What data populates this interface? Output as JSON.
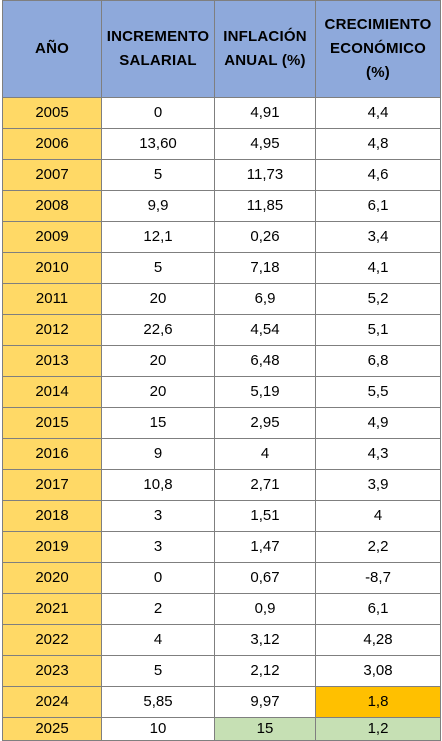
{
  "table": {
    "headers": [
      "AÑO",
      "INCREMENTO\nSALARIAL",
      "INFLACIÓN\nANUAL (%)",
      "CRECIMIENTO\nECONÓMICO\n(%)"
    ],
    "rows": [
      [
        "2005",
        "0",
        "4,91",
        "4,4"
      ],
      [
        "2006",
        "13,60",
        "4,95",
        "4,8"
      ],
      [
        "2007",
        "5",
        "11,73",
        "4,6"
      ],
      [
        "2008",
        "9,9",
        "11,85",
        "6,1"
      ],
      [
        "2009",
        "12,1",
        "0,26",
        "3,4"
      ],
      [
        "2010",
        "5",
        "7,18",
        "4,1"
      ],
      [
        "2011",
        "20",
        "6,9",
        "5,2"
      ],
      [
        "2012",
        "22,6",
        "4,54",
        "5,1"
      ],
      [
        "2013",
        "20",
        "6,48",
        "6,8"
      ],
      [
        "2014",
        "20",
        "5,19",
        "5,5"
      ],
      [
        "2015",
        "15",
        "2,95",
        "4,9"
      ],
      [
        "2016",
        "9",
        "4",
        "4,3"
      ],
      [
        "2017",
        "10,8",
        "2,71",
        "3,9"
      ],
      [
        "2018",
        "3",
        "1,51",
        "4"
      ],
      [
        "2019",
        "3",
        "1,47",
        "2,2"
      ],
      [
        "2020",
        "0",
        "0,67",
        "-8,7"
      ],
      [
        "2021",
        "2",
        "0,9",
        "6,1"
      ],
      [
        "2022",
        "4",
        "3,12",
        "4,28"
      ],
      [
        "2023",
        "5",
        "2,12",
        "3,08"
      ],
      [
        "2024",
        "5,85",
        "9,97",
        "1,8"
      ],
      [
        "2025",
        "10",
        "15",
        "1,2"
      ]
    ]
  },
  "colors": {
    "header_bg": "#8ea9db",
    "year_bg": "#ffd966",
    "highlight_green": "#c6e0b4",
    "highlight_orange": "#ffc000"
  }
}
